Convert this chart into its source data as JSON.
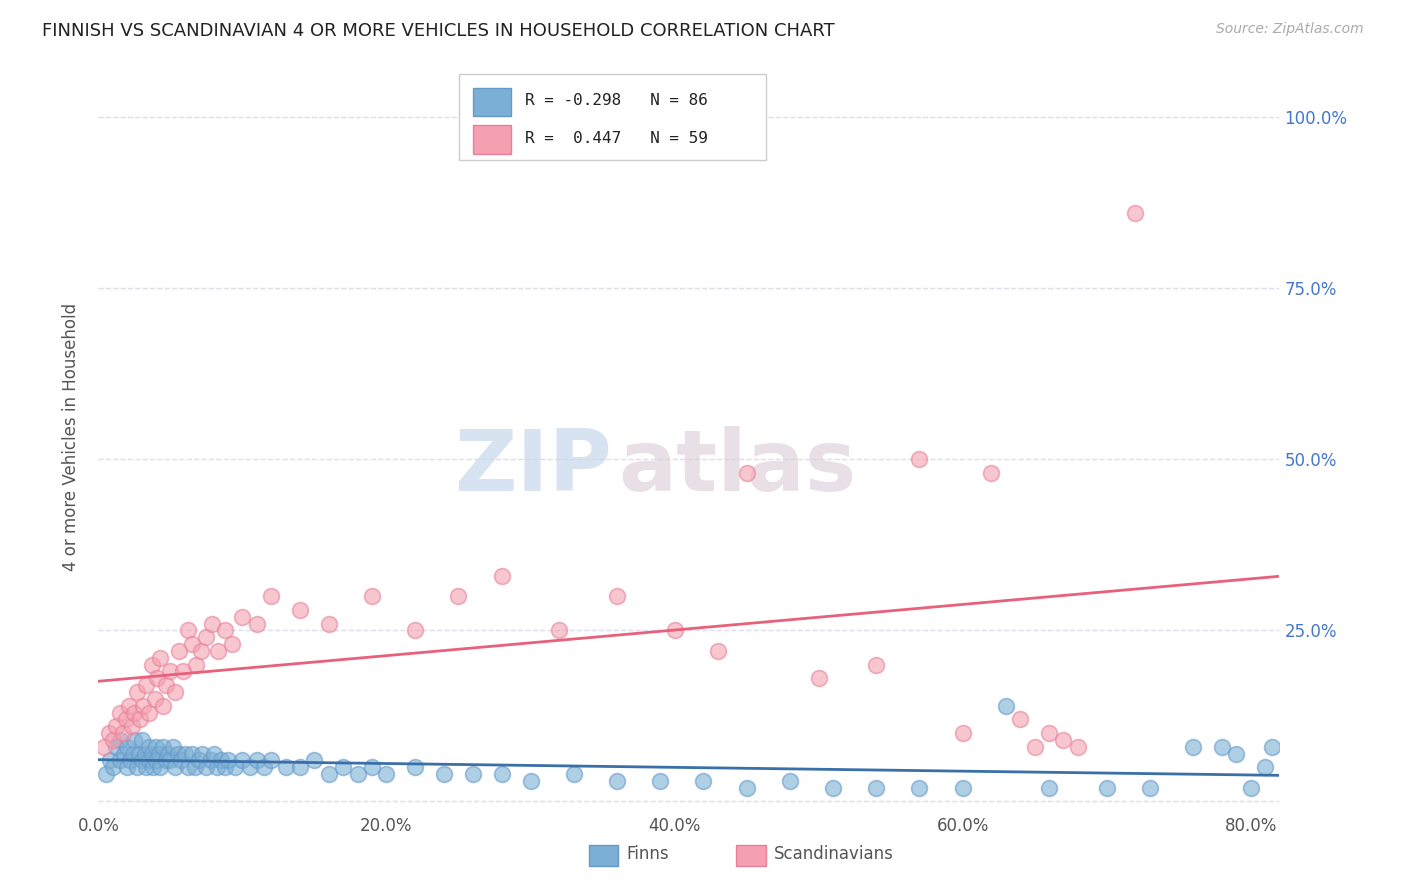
{
  "title": "FINNISH VS SCANDINAVIAN 4 OR MORE VEHICLES IN HOUSEHOLD CORRELATION CHART",
  "source": "Source: ZipAtlas.com",
  "ylabel": "4 or more Vehicles in Household",
  "finns_R": -0.298,
  "finns_N": 86,
  "scands_R": 0.447,
  "scands_N": 59,
  "finns_color": "#7bafd4",
  "scands_color": "#f4a0b0",
  "finns_edge_color": "#6699cc",
  "scands_edge_color": "#e88099",
  "finns_line_color": "#3a6fa8",
  "scands_line_color": "#e8607a",
  "legend_label_finns": "Finns",
  "legend_label_scands": "Scandinavians",
  "watermark_zip": "ZIP",
  "watermark_atlas": "atlas",
  "watermark_color": "#ccd8e8",
  "title_color": "#222222",
  "source_color": "#aaaaaa",
  "right_axis_color": "#4477cc",
  "grid_color": "#ddddee",
  "xlim": [
    0.0,
    0.82
  ],
  "ylim": [
    -0.015,
    1.08
  ],
  "xtick_vals": [
    0.0,
    0.2,
    0.4,
    0.6,
    0.8
  ],
  "xtick_labels": [
    "0.0%",
    "20.0%",
    "40.0%",
    "60.0%",
    "80.0%"
  ],
  "ytick_vals": [
    0.0,
    0.25,
    0.5,
    0.75,
    1.0
  ],
  "right_ytick_vals": [
    1.0,
    0.75,
    0.5,
    0.25
  ],
  "right_ytick_labels": [
    "100.0%",
    "75.0%",
    "50.0%",
    "25.0%"
  ],
  "finns_x": [
    0.005,
    0.008,
    0.01,
    0.012,
    0.015,
    0.015,
    0.018,
    0.02,
    0.02,
    0.022,
    0.024,
    0.025,
    0.027,
    0.028,
    0.03,
    0.03,
    0.032,
    0.033,
    0.035,
    0.035,
    0.037,
    0.038,
    0.04,
    0.04,
    0.042,
    0.043,
    0.045,
    0.047,
    0.048,
    0.05,
    0.052,
    0.053,
    0.055,
    0.057,
    0.06,
    0.062,
    0.065,
    0.067,
    0.07,
    0.072,
    0.075,
    0.078,
    0.08,
    0.082,
    0.085,
    0.088,
    0.09,
    0.095,
    0.1,
    0.105,
    0.11,
    0.115,
    0.12,
    0.13,
    0.14,
    0.15,
    0.16,
    0.17,
    0.18,
    0.19,
    0.2,
    0.22,
    0.24,
    0.26,
    0.28,
    0.3,
    0.33,
    0.36,
    0.39,
    0.42,
    0.45,
    0.48,
    0.51,
    0.54,
    0.57,
    0.6,
    0.63,
    0.66,
    0.7,
    0.73,
    0.76,
    0.78,
    0.79,
    0.8,
    0.81,
    0.815
  ],
  "finns_y": [
    0.04,
    0.06,
    0.05,
    0.08,
    0.06,
    0.09,
    0.07,
    0.05,
    0.08,
    0.06,
    0.07,
    0.09,
    0.05,
    0.07,
    0.06,
    0.09,
    0.07,
    0.05,
    0.08,
    0.06,
    0.07,
    0.05,
    0.08,
    0.06,
    0.07,
    0.05,
    0.08,
    0.06,
    0.07,
    0.06,
    0.08,
    0.05,
    0.07,
    0.06,
    0.07,
    0.05,
    0.07,
    0.05,
    0.06,
    0.07,
    0.05,
    0.06,
    0.07,
    0.05,
    0.06,
    0.05,
    0.06,
    0.05,
    0.06,
    0.05,
    0.06,
    0.05,
    0.06,
    0.05,
    0.05,
    0.06,
    0.04,
    0.05,
    0.04,
    0.05,
    0.04,
    0.05,
    0.04,
    0.04,
    0.04,
    0.03,
    0.04,
    0.03,
    0.03,
    0.03,
    0.02,
    0.03,
    0.02,
    0.02,
    0.02,
    0.02,
    0.14,
    0.02,
    0.02,
    0.02,
    0.08,
    0.08,
    0.07,
    0.02,
    0.05,
    0.08
  ],
  "scands_x": [
    0.004,
    0.007,
    0.01,
    0.012,
    0.015,
    0.017,
    0.019,
    0.021,
    0.023,
    0.025,
    0.027,
    0.029,
    0.031,
    0.033,
    0.035,
    0.037,
    0.039,
    0.041,
    0.043,
    0.045,
    0.047,
    0.05,
    0.053,
    0.056,
    0.059,
    0.062,
    0.065,
    0.068,
    0.071,
    0.075,
    0.079,
    0.083,
    0.088,
    0.093,
    0.1,
    0.11,
    0.12,
    0.14,
    0.16,
    0.19,
    0.22,
    0.25,
    0.28,
    0.32,
    0.36,
    0.4,
    0.43,
    0.45,
    0.5,
    0.54,
    0.57,
    0.6,
    0.62,
    0.64,
    0.65,
    0.66,
    0.67,
    0.68,
    0.72
  ],
  "scands_y": [
    0.08,
    0.1,
    0.09,
    0.11,
    0.13,
    0.1,
    0.12,
    0.14,
    0.11,
    0.13,
    0.16,
    0.12,
    0.14,
    0.17,
    0.13,
    0.2,
    0.15,
    0.18,
    0.21,
    0.14,
    0.17,
    0.19,
    0.16,
    0.22,
    0.19,
    0.25,
    0.23,
    0.2,
    0.22,
    0.24,
    0.26,
    0.22,
    0.25,
    0.23,
    0.27,
    0.26,
    0.3,
    0.28,
    0.26,
    0.3,
    0.25,
    0.3,
    0.33,
    0.25,
    0.3,
    0.25,
    0.22,
    0.48,
    0.18,
    0.2,
    0.5,
    0.1,
    0.48,
    0.12,
    0.08,
    0.1,
    0.09,
    0.08,
    0.86
  ]
}
